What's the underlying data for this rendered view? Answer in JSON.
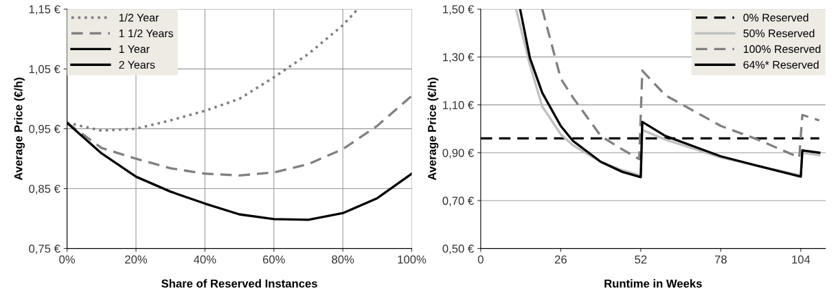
{
  "chart_data": [
    {
      "type": "line",
      "xlabel": "Share of Reserved Instances",
      "ylabel": "Average Price (€/h)",
      "xlim": [
        0,
        100
      ],
      "ylim": [
        0.75,
        1.15
      ],
      "xticks": [
        {
          "value": 0,
          "label": "0%"
        },
        {
          "value": 20,
          "label": "20%"
        },
        {
          "value": 40,
          "label": "40%"
        },
        {
          "value": 60,
          "label": "60%"
        },
        {
          "value": 80,
          "label": "80%"
        },
        {
          "value": 100,
          "label": "100%"
        }
      ],
      "yticks": [
        {
          "value": 0.75,
          "label": "0,75 €"
        },
        {
          "value": 0.85,
          "label": "0,85 €"
        },
        {
          "value": 0.95,
          "label": "0,95 €"
        },
        {
          "value": 1.05,
          "label": "1,05 €"
        },
        {
          "value": 1.15,
          "label": "1,15 €"
        }
      ],
      "grid": true,
      "legend": "top left",
      "series": [
        {
          "name": "1/2 Year",
          "color": "#808080",
          "line_style": "dotted",
          "x": [
            0,
            10,
            20,
            30,
            40,
            50,
            60,
            70,
            80,
            84
          ],
          "values": [
            0.96,
            0.947,
            0.95,
            0.964,
            0.98,
            1.0,
            1.036,
            1.075,
            1.123,
            1.148
          ]
        },
        {
          "name": "1 1/2 Years",
          "color": "#808080",
          "line_style": "dashed",
          "x": [
            0,
            10,
            20,
            30,
            40,
            50,
            60,
            70,
            80,
            90,
            100
          ],
          "values": [
            0.96,
            0.918,
            0.9,
            0.884,
            0.875,
            0.872,
            0.877,
            0.891,
            0.916,
            0.955,
            1.005
          ]
        },
        {
          "name": "1 Year",
          "color": "#000000",
          "line_style": "solid",
          "values": [
            null
          ]
        },
        {
          "name": "2 Years",
          "color": "#000000",
          "line_style": "solid",
          "x": [
            0,
            10,
            20,
            30,
            40,
            50,
            60,
            70,
            80,
            90,
            100
          ],
          "values": [
            0.96,
            0.909,
            0.87,
            0.845,
            0.825,
            0.807,
            0.799,
            0.798,
            0.809,
            0.834,
            0.875
          ]
        }
      ]
    },
    {
      "type": "line",
      "xlabel": "Runtime in Weeks",
      "ylabel": "Average Price (€/h)",
      "xlim": [
        0,
        112
      ],
      "ylim": [
        0.5,
        1.5
      ],
      "xticks": [
        0,
        26,
        52,
        78,
        104
      ],
      "yticks": [
        {
          "value": 0.5,
          "label": "0,50 €"
        },
        {
          "value": 0.7,
          "label": "0,70 €"
        },
        {
          "value": 0.9,
          "label": "0,90 €"
        },
        {
          "value": 1.1,
          "label": "1,10 €"
        },
        {
          "value": 1.3,
          "label": "1,30 €"
        },
        {
          "value": 1.5,
          "label": "1,50 €"
        }
      ],
      "grid": "y",
      "legend": "top right",
      "series": [
        {
          "name": "0% Reserved",
          "color": "#000000",
          "line_style": "dashed",
          "x": [
            0,
            110
          ],
          "values": [
            0.96,
            0.96
          ]
        },
        {
          "name": "50% Reserved",
          "color": "#c0c0c0",
          "line_style": "solid",
          "x": [
            11.5,
            16,
            20,
            26,
            30,
            39,
            46,
            52,
            52.5,
            60,
            78,
            90,
            104,
            104.5,
            110
          ],
          "values": [
            1.5,
            1.266,
            1.093,
            0.977,
            0.931,
            0.862,
            0.827,
            0.804,
            0.995,
            0.955,
            0.88,
            0.845,
            0.805,
            0.9,
            0.89
          ]
        },
        {
          "name": "100% Reserved",
          "color": "#808080",
          "line_style": "dashed",
          "x": [
            20,
            26,
            30,
            39,
            46,
            51.5,
            52.5,
            60,
            78,
            90,
            103.5,
            104.5,
            110
          ],
          "values": [
            1.5,
            1.21,
            1.13,
            0.97,
            0.914,
            0.873,
            1.243,
            1.14,
            1.012,
            0.955,
            0.88,
            1.058,
            1.035
          ]
        },
        {
          "name": "64%* Reserved",
          "color": "#000000",
          "line_style": "solid",
          "x": [
            12.8,
            16,
            20,
            26,
            30,
            39,
            46,
            52,
            52.5,
            60,
            78,
            90,
            104,
            104.5,
            110
          ],
          "values": [
            1.5,
            1.295,
            1.15,
            1.012,
            0.949,
            0.862,
            0.82,
            0.798,
            1.029,
            0.97,
            0.885,
            0.845,
            0.8,
            0.91,
            0.9
          ]
        }
      ]
    }
  ]
}
